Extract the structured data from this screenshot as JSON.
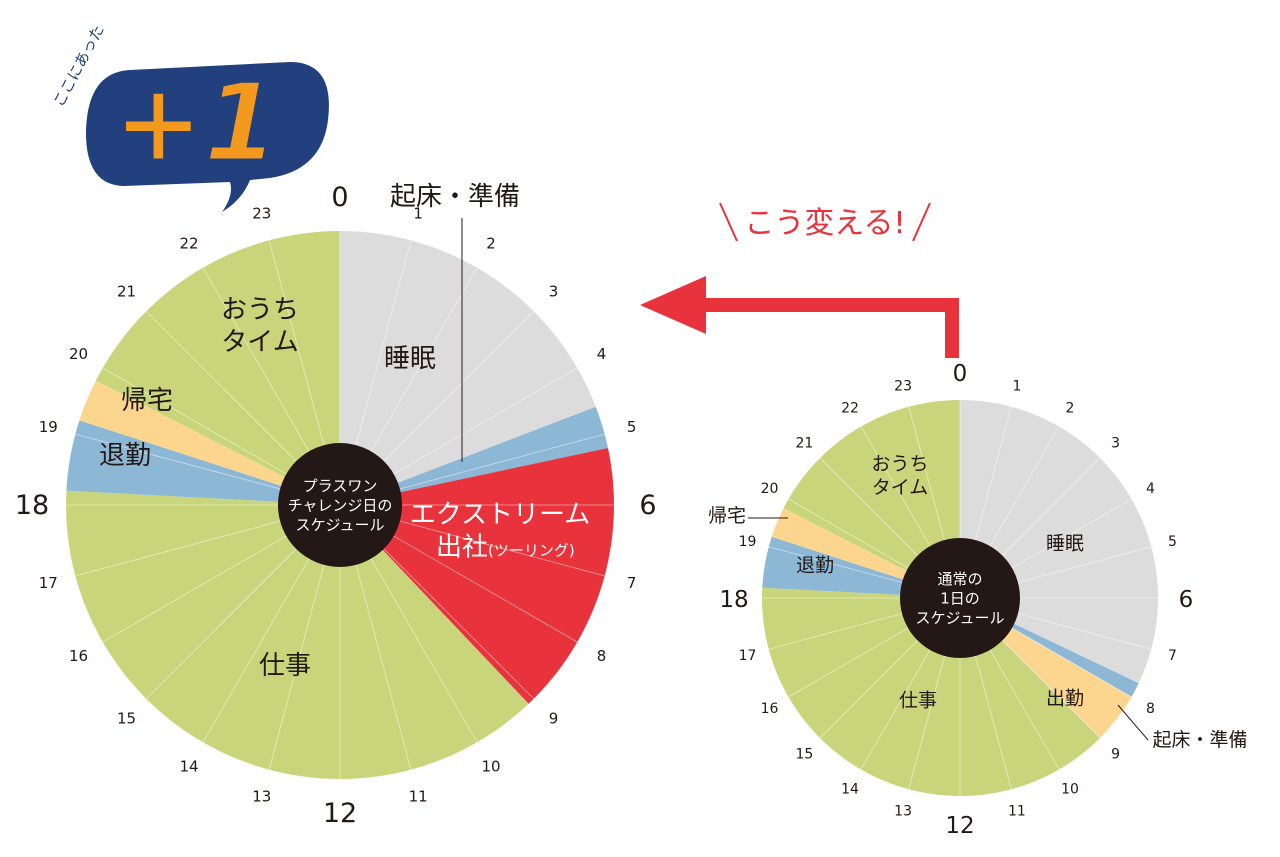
{
  "badge": {
    "caption": "ここにあった",
    "text": "+1"
  },
  "transition_label": "こう変える!",
  "colors": {
    "sleep": "#dcdcdc",
    "prep": "#8cb8d6",
    "commute_extreme": "#e8323c",
    "work": "#c8d57a",
    "home_time": "#c8d57a",
    "return_home": "#fcd58f",
    "leave_work": "#8cb8d6",
    "commute": "#fcd58f",
    "hub": "#231815",
    "arrow": "#e8323c",
    "badge_bg": "#22407e",
    "badge_orange": "#f39a1e"
  },
  "chart_data": [
    {
      "type": "pie",
      "title": "プラスワンチャレンジ日のスケジュール",
      "title_lines": [
        "プラスワン",
        "チャレンジ日の",
        "スケジュール"
      ],
      "unit": "hour",
      "hour_labels": [
        "0",
        "1",
        "2",
        "3",
        "4",
        "5",
        "6",
        "7",
        "8",
        "9",
        "10",
        "11",
        "12",
        "13",
        "14",
        "15",
        "16",
        "17",
        "18",
        "19",
        "20",
        "21",
        "22",
        "23"
      ],
      "segments": [
        {
          "name": "睡眠",
          "lines": [
            "睡眠"
          ],
          "start": 0,
          "end": 4.6,
          "color": "sleep"
        },
        {
          "name": "起床・準備",
          "lines": [],
          "callout": "起床・準備",
          "start": 4.6,
          "end": 5.2,
          "color": "prep"
        },
        {
          "name": "エクストリーム出社(ツーリング)",
          "lines": [
            "エクストリーム",
            "出社"
          ],
          "note": "(ツーリング)",
          "start": 5.2,
          "end": 9.1,
          "color": "commute_extreme"
        },
        {
          "name": "仕事",
          "lines": [
            "仕事"
          ],
          "start": 9.1,
          "end": 18.2,
          "color": "work"
        },
        {
          "name": "退勤",
          "lines": [
            "退勤"
          ],
          "start": 18.2,
          "end": 19.2,
          "color": "leave_work"
        },
        {
          "name": "帰宅",
          "lines": [
            "帰宅"
          ],
          "start": 19.2,
          "end": 19.8,
          "color": "return_home"
        },
        {
          "name": "おうちタイム",
          "lines": [
            "おうち",
            "タイム"
          ],
          "start": 19.8,
          "end": 24,
          "color": "home_time"
        }
      ]
    },
    {
      "type": "pie",
      "title": "通常の1日のスケジュール",
      "title_lines": [
        "通常の",
        "1日の",
        "スケジュール"
      ],
      "unit": "hour",
      "hour_labels": [
        "0",
        "1",
        "2",
        "3",
        "4",
        "5",
        "6",
        "7",
        "8",
        "9",
        "10",
        "11",
        "12",
        "13",
        "14",
        "15",
        "16",
        "17",
        "18",
        "19",
        "20",
        "21",
        "22",
        "23"
      ],
      "segments": [
        {
          "name": "睡眠",
          "lines": [
            "睡眠"
          ],
          "start": 0,
          "end": 7.7,
          "color": "sleep"
        },
        {
          "name": "起床・準備",
          "lines": [],
          "callout": "起床・準備",
          "start": 7.7,
          "end": 8.0,
          "color": "prep"
        },
        {
          "name": "出勤",
          "lines": [
            "出勤"
          ],
          "start": 8.0,
          "end": 9.0,
          "color": "commute"
        },
        {
          "name": "仕事",
          "lines": [
            "仕事"
          ],
          "start": 9.0,
          "end": 18.2,
          "color": "work"
        },
        {
          "name": "退勤",
          "lines": [
            "退勤"
          ],
          "start": 18.2,
          "end": 19.2,
          "color": "leave_work"
        },
        {
          "name": "帰宅",
          "lines": [],
          "callout": "帰宅",
          "start": 19.2,
          "end": 19.8,
          "color": "return_home"
        },
        {
          "name": "おうちタイム",
          "lines": [
            "おうち",
            "タイム"
          ],
          "start": 19.8,
          "end": 24,
          "color": "home_time"
        }
      ]
    }
  ]
}
